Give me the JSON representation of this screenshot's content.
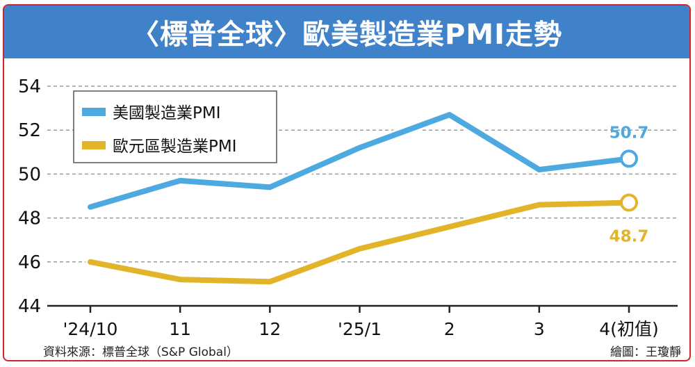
{
  "header": {
    "title": "〈標普全球〉歐美製造業PMI走勢"
  },
  "footer": {
    "source": "資料來源：標普全球（S&P Global）",
    "credit": "繪圖：王瓊靜"
  },
  "colors": {
    "title_bg": "#3f82c9",
    "border": "#d2232a",
    "us_line": "#4ea9e0",
    "eu_line": "#e2b42a"
  },
  "chart_data": {
    "type": "line",
    "categories": [
      "'24/10",
      "11",
      "12",
      "'25/1",
      "2",
      "3",
      "4(初值)"
    ],
    "yticks": [
      "44",
      "46",
      "48",
      "50",
      "52",
      "54"
    ],
    "ylim": [
      44,
      54
    ],
    "grid": true,
    "legend_position": "top-left",
    "series": [
      {
        "name": "美國製造業PMI",
        "values": [
          48.5,
          49.7,
          49.4,
          51.2,
          52.7,
          50.2,
          50.7
        ],
        "color": "#4ea9e0",
        "end_label": "50.7"
      },
      {
        "name": "歐元區製造業PMI",
        "values": [
          46.0,
          45.2,
          45.1,
          46.6,
          47.6,
          48.6,
          48.7
        ],
        "color": "#e2b42a",
        "end_label": "48.7"
      }
    ]
  }
}
